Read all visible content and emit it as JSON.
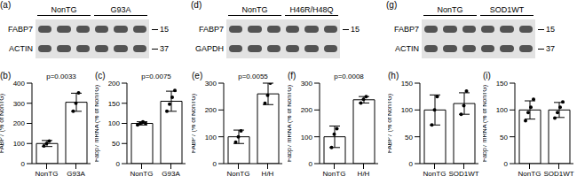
{
  "blots": [
    {
      "panel_label": "(a)",
      "groups": [
        "NonTG",
        "G93A"
      ],
      "rows": [
        {
          "label": "FABP7",
          "marker": 15
        },
        {
          "label": "ACTIN",
          "marker": 37
        }
      ]
    },
    {
      "panel_label": "(d)",
      "groups": [
        "NonTG",
        "H46R/H48Q"
      ],
      "rows": [
        {
          "label": "FABP7",
          "marker": 15
        },
        {
          "label": "GAPDH"
        }
      ]
    },
    {
      "panel_label": "(g)",
      "groups": [
        "NonTG",
        "SOD1WT"
      ],
      "rows": [
        {
          "label": "FABP7",
          "marker": 15
        },
        {
          "label": "ACTIN",
          "marker": 37
        }
      ]
    }
  ],
  "chart_data": [
    {
      "panel_label": "(b)",
      "type": "bar",
      "y_label": "FABP7 (% of NonTG)",
      "categories": [
        "NonTG",
        "G93A"
      ],
      "values": [
        100,
        305
      ],
      "errors": [
        15,
        45
      ],
      "points": [
        [
          88,
          100,
          112
        ],
        [
          260,
          300,
          352
        ]
      ],
      "ylim": [
        0,
        400
      ],
      "yticks": [
        0,
        100,
        200,
        300,
        400
      ],
      "annotation": "p=0.0033",
      "color": "#ffffff"
    },
    {
      "panel_label": "(c)",
      "type": "bar",
      "y_label": "Fabp7 mRNA (% of NonTG)",
      "categories": [
        "NonTG",
        "G93A"
      ],
      "values": [
        100,
        155
      ],
      "errors": [
        4,
        25
      ],
      "points": [
        [
          96,
          100,
          104,
          100
        ],
        [
          130,
          148,
          165,
          182
        ]
      ],
      "ylim": [
        0,
        200
      ],
      "yticks": [
        0,
        50,
        100,
        150,
        200
      ],
      "annotation": "p=0.0075",
      "color": "#ffffff"
    },
    {
      "panel_label": "(e)",
      "type": "bar",
      "y_label": "FABP7 (% of NonTG)",
      "categories": [
        "NonTG",
        "H/H"
      ],
      "values": [
        100,
        260
      ],
      "errors": [
        25,
        40
      ],
      "points": [
        [
          80,
          100,
          122
        ],
        [
          225,
          255,
          300
        ]
      ],
      "ylim": [
        0,
        300
      ],
      "yticks": [
        0,
        100,
        200,
        300
      ],
      "annotation": "p=0.0055",
      "color": "#ffffff"
    },
    {
      "panel_label": "(f)",
      "type": "bar",
      "y_label": "Fabp7 mRNA (% of NonTG)",
      "categories": [
        "NonTG",
        "H/H"
      ],
      "values": [
        100,
        238
      ],
      "errors": [
        40,
        12
      ],
      "points": [
        [
          60,
          110,
          130
        ],
        [
          226,
          240,
          250
        ]
      ],
      "ylim": [
        0,
        300
      ],
      "yticks": [
        0,
        100,
        200,
        300
      ],
      "annotation": "p=0.0008",
      "color": "#ffffff"
    },
    {
      "panel_label": "(h)",
      "type": "bar",
      "y_label": "FABP7 (% of NonTG)",
      "categories": [
        "NonTG",
        "SOD1WT"
      ],
      "values": [
        100,
        112
      ],
      "errors": [
        28,
        20
      ],
      "points": [
        [
          72,
          100,
          125
        ],
        [
          92,
          108,
          135
        ]
      ],
      "ylim": [
        0,
        150
      ],
      "yticks": [
        0,
        50,
        100,
        150
      ],
      "color": "#ffffff"
    },
    {
      "panel_label": "(i)",
      "type": "bar",
      "y_label": "Fabp7 mRNA (% of NonTG)",
      "categories": [
        "NonTG",
        "SOD1WT"
      ],
      "values": [
        100,
        100
      ],
      "errors": [
        17,
        14
      ],
      "points": [
        [
          80,
          95,
          105,
          120
        ],
        [
          85,
          95,
          105,
          115
        ]
      ],
      "ylim": [
        0,
        150
      ],
      "yticks": [
        0,
        50,
        100,
        150
      ],
      "color": "#ffffff"
    }
  ]
}
